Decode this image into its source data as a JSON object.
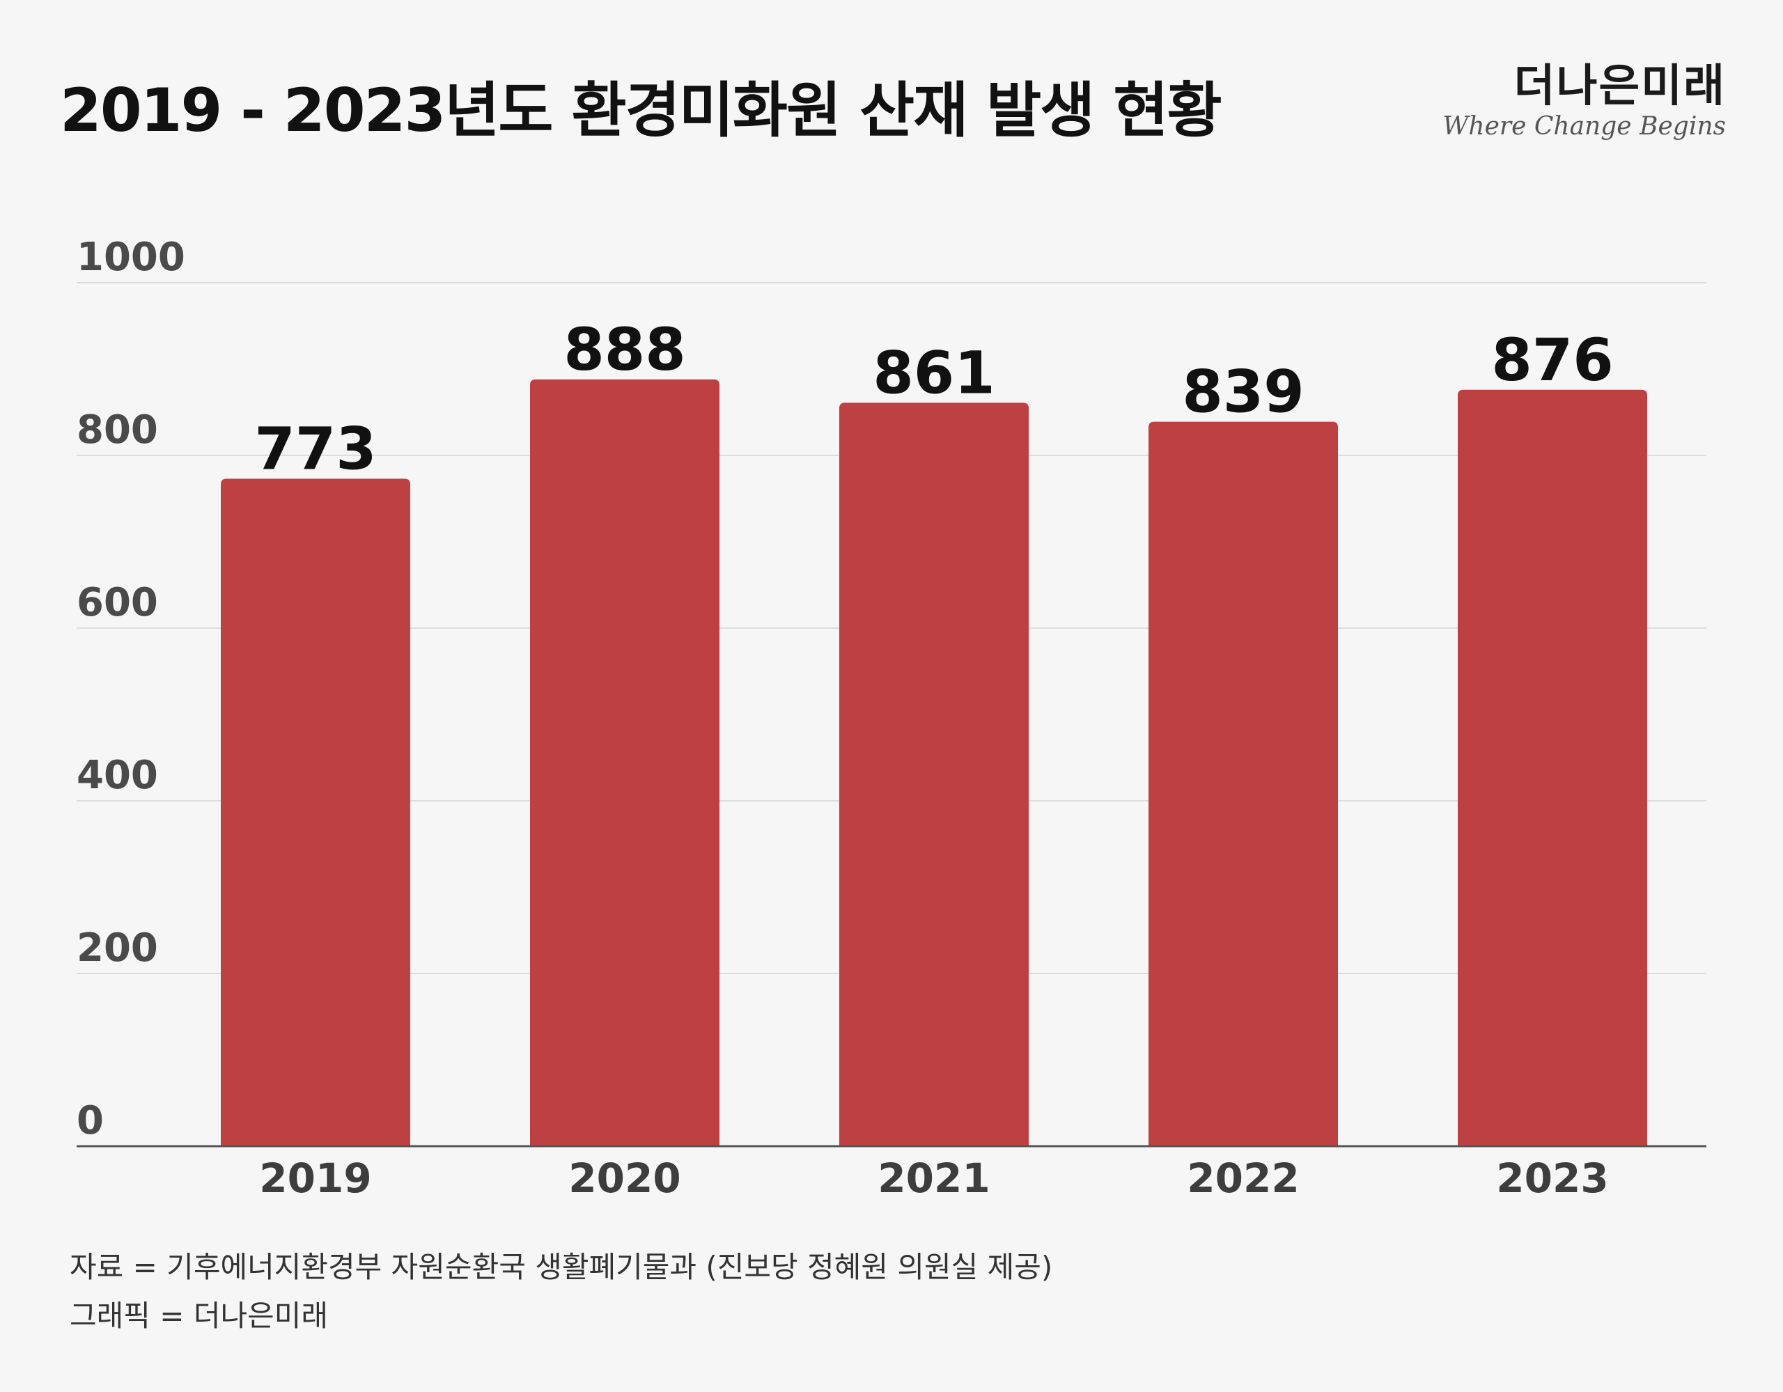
{
  "title": "2019 - 2023년도 환경미화원 산재 발생 현황",
  "brand": {
    "name": "더나은미래",
    "tagline": "Where Change Begins"
  },
  "colors": {
    "bar": "#bd4042",
    "background": "#f6f6f6"
  },
  "chart_data": {
    "type": "bar",
    "title": "2019 - 2023년도 환경미화원 산재 발생 현황",
    "categories": [
      "2019",
      "2020",
      "2021",
      "2022",
      "2023"
    ],
    "values": [
      773,
      888,
      861,
      839,
      876
    ],
    "data_labels": [
      "773",
      "888",
      "861",
      "839",
      "876"
    ],
    "yticks": [
      0,
      200,
      400,
      600,
      800,
      1000
    ],
    "ytick_labels": [
      "0",
      "200",
      "400",
      "600",
      "800",
      "1000"
    ],
    "ylim": [
      0,
      1000
    ],
    "xlabel": "",
    "ylabel": "",
    "grid": true
  },
  "footer": {
    "source": "자료 = 기후에너지환경부 자원순환국 생활폐기물과 (진보당 정혜원 의원실 제공)",
    "graphic": "그래픽 = 더나은미래"
  }
}
